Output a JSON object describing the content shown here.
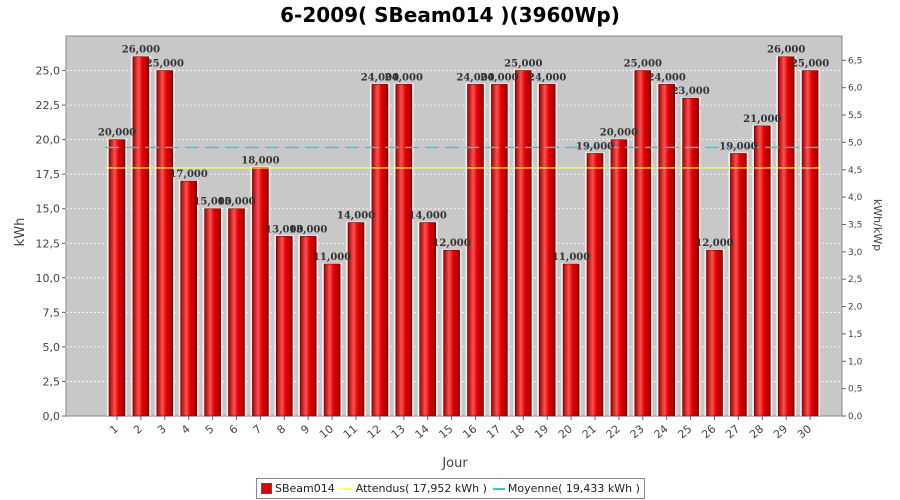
{
  "colors": {
    "bar": "#e00000",
    "bar_dark": "#a00000",
    "bar_highlight": "#ff5050",
    "plot_bg": "#c8c8c8",
    "attendus_line": "#ffff66",
    "moyenne_line": "#33cccc"
  },
  "chart_data": {
    "type": "bar",
    "title": "6-2009( SBeam014 )(3960Wp)",
    "xlabel": "Jour",
    "ylabel": "kWh",
    "y2label": "kWh/kWp",
    "ylim": [
      0,
      27.5
    ],
    "y2lim": [
      0,
      6.9444
    ],
    "yticks": [
      "0,0",
      "2,5",
      "5,0",
      "7,5",
      "10,0",
      "12,5",
      "15,0",
      "17,5",
      "20,0",
      "22,5",
      "25,0"
    ],
    "y2ticks": [
      "0,0",
      "0,5",
      "1,0",
      "1,5",
      "2,0",
      "2,5",
      "3,0",
      "3,5",
      "4,0",
      "4,5",
      "5,0",
      "5,5",
      "6,0",
      "6,5"
    ],
    "categories": [
      "1",
      "2",
      "3",
      "4",
      "5",
      "6",
      "7",
      "8",
      "9",
      "10",
      "11",
      "12",
      "13",
      "14",
      "15",
      "16",
      "17",
      "18",
      "19",
      "20",
      "21",
      "22",
      "23",
      "24",
      "25",
      "26",
      "27",
      "28",
      "29",
      "30"
    ],
    "series": [
      {
        "name": "SBeam014",
        "values": [
          20,
          26,
          25,
          17,
          15,
          15,
          18,
          13,
          13,
          11,
          14,
          24,
          24,
          14,
          12,
          24,
          24,
          25,
          24,
          11,
          19,
          20,
          25,
          24,
          23,
          12,
          19,
          21,
          26,
          25
        ],
        "labels": [
          "20,000",
          "26,000",
          "25,000",
          "17,000",
          "15,000",
          "15,000",
          "18,000",
          "13,000",
          "13,000",
          "11,000",
          "14,000",
          "24,000",
          "24,000",
          "14,000",
          "12,000",
          "24,000",
          "24,000",
          "25,000",
          "24,000",
          "11,000",
          "19,000",
          "20,000",
          "25,000",
          "24,000",
          "23,000",
          "12,000",
          "19,000",
          "21,000",
          "26,000",
          "25,000"
        ]
      }
    ],
    "reference_lines": [
      {
        "name": "Attendus( 17,952 kWh )",
        "value": 17.952,
        "style": "solid"
      },
      {
        "name": "Moyenne( 19,433 kWh )",
        "value": 19.433,
        "style": "dashed"
      }
    ],
    "grid": true,
    "legend_position": "bottom"
  },
  "legend": {
    "series_label": "SBeam014",
    "attendus_label": "Attendus( 17,952 kWh )",
    "moyenne_label": "Moyenne( 19,433 kWh )"
  }
}
